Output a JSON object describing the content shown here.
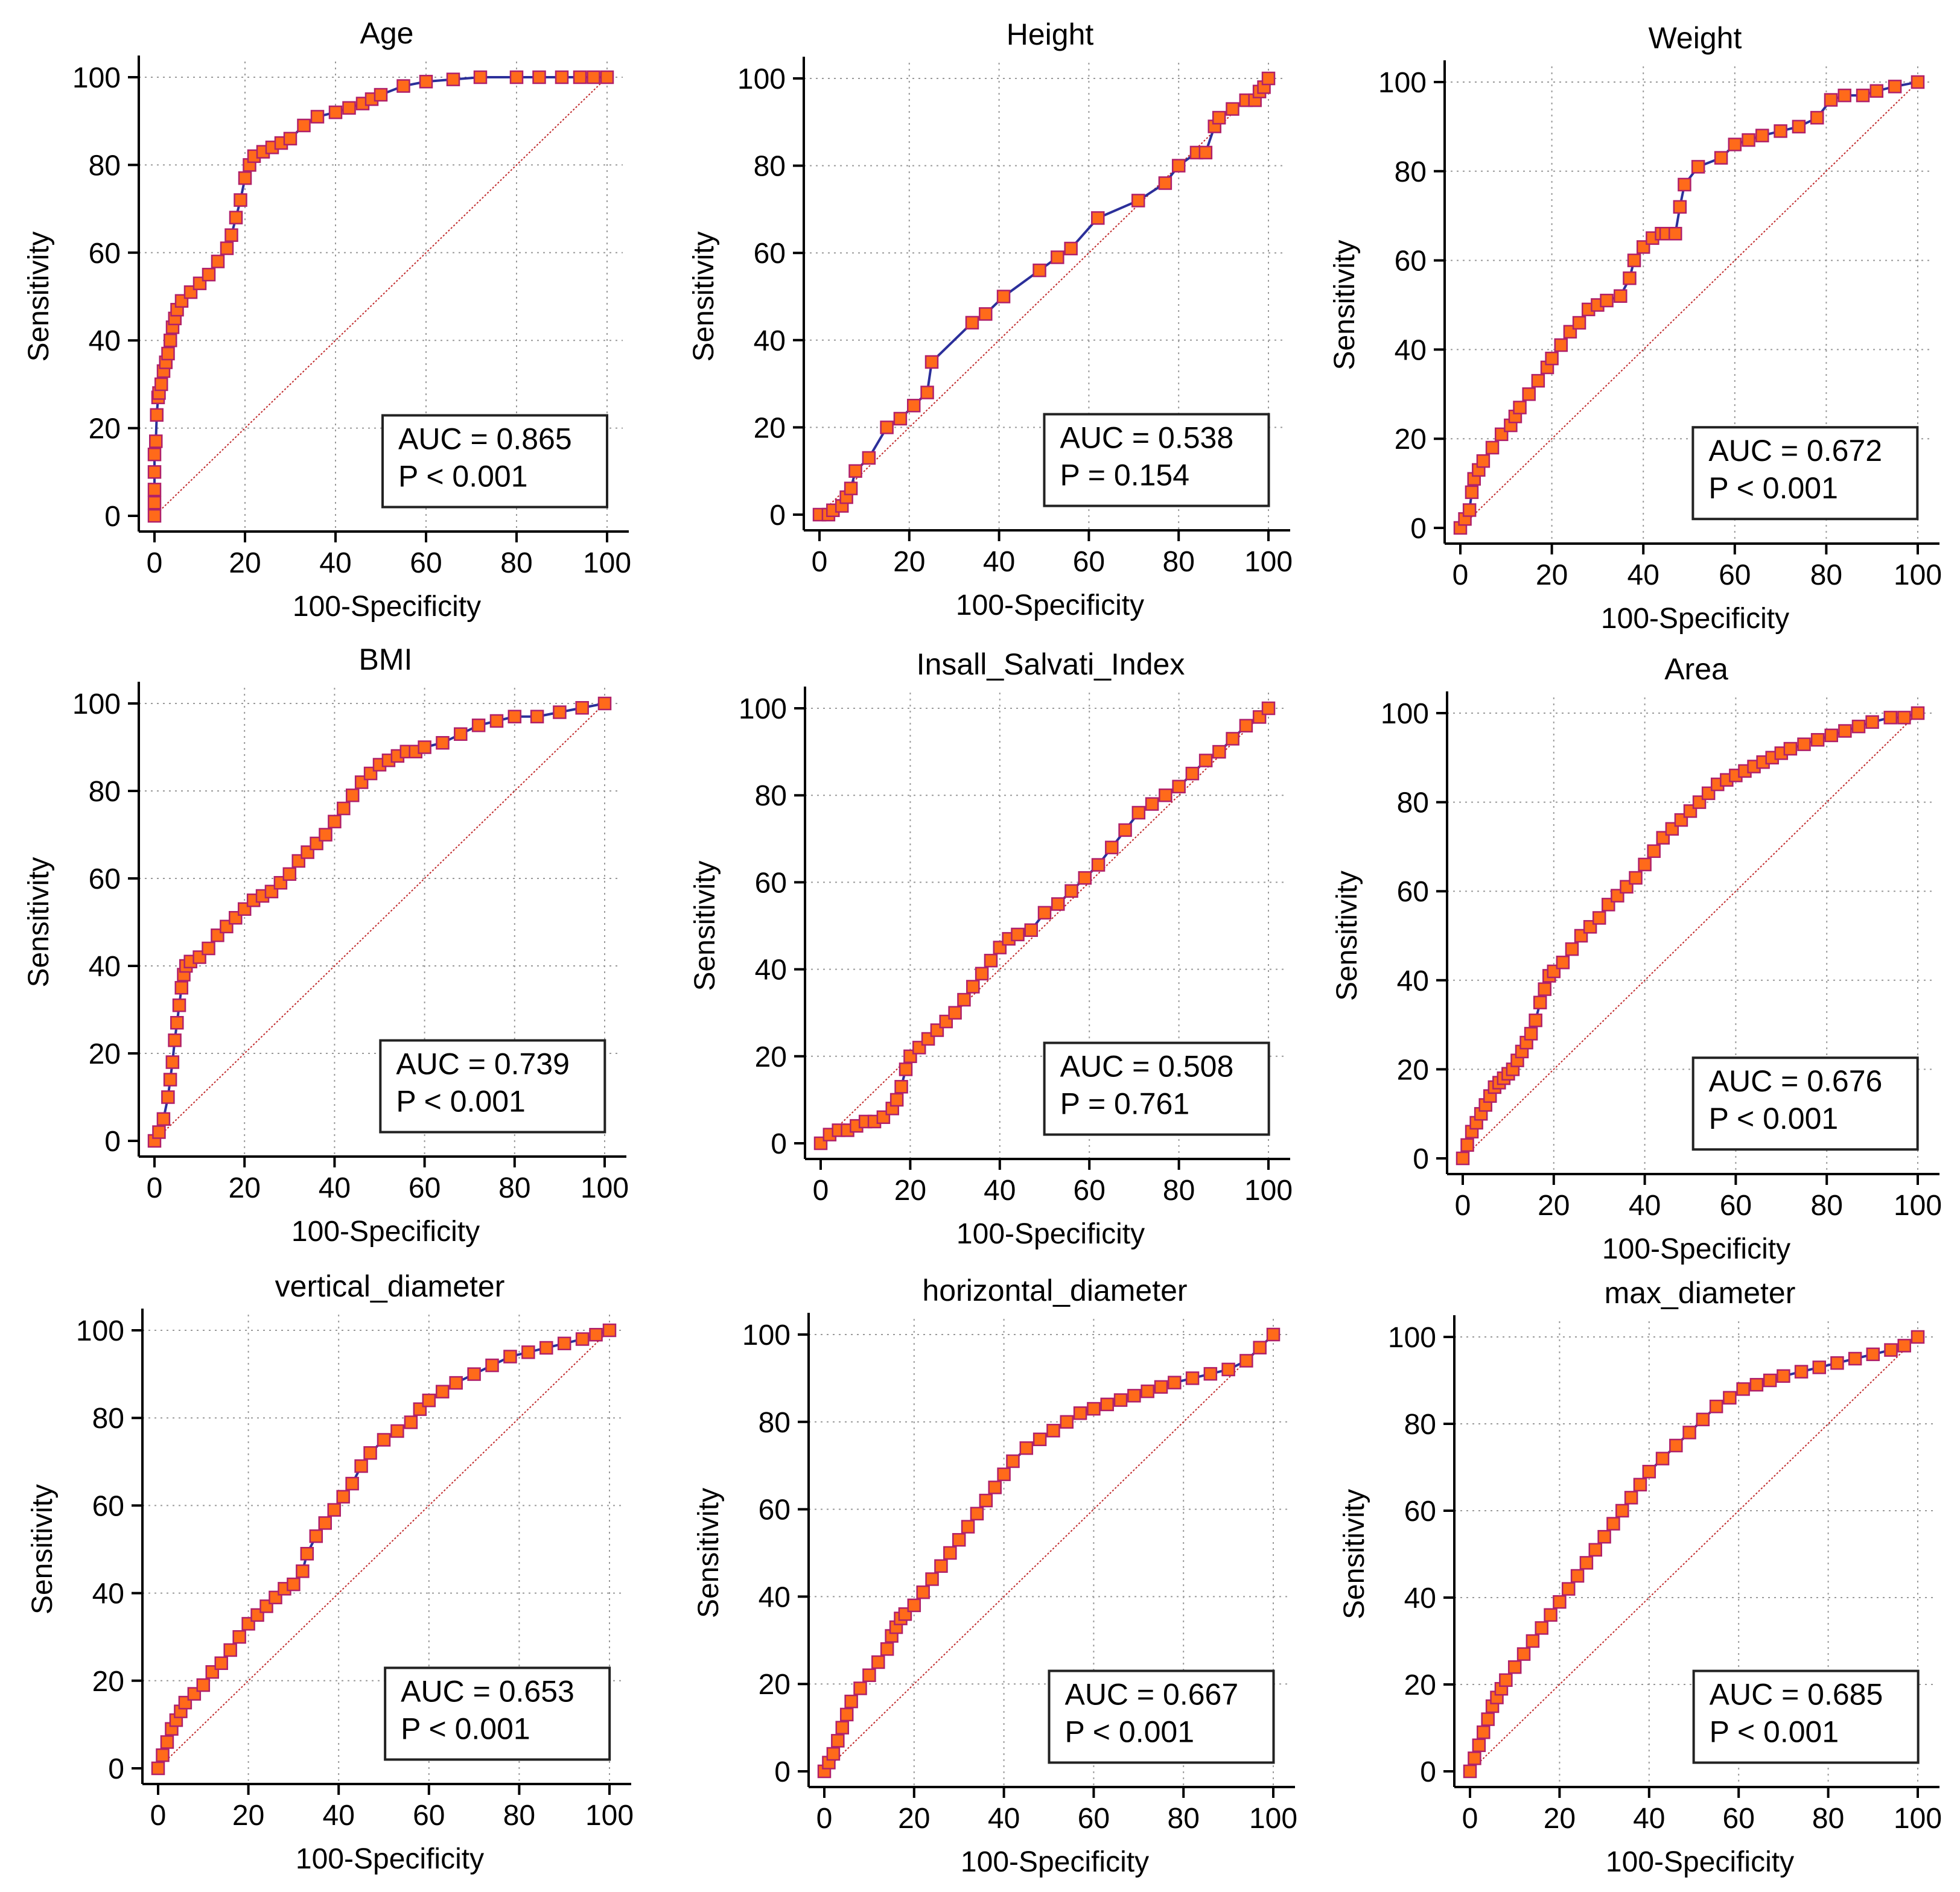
{
  "colors": {
    "curve": "#2b2f9a",
    "marker_fill": "#ff6a1a",
    "marker_stroke": "#b0206a",
    "diagonal": "#c0282a",
    "grid": "#9a9a9a",
    "axis": "#000000"
  },
  "chart_data": [
    {
      "type": "line",
      "title": "Age",
      "xlabel": "100-Specificity",
      "ylabel": "Sensitivity",
      "xlim": [
        0,
        100
      ],
      "ylim": [
        0,
        100
      ],
      "xticks": [
        "0",
        "20",
        "40",
        "60",
        "80",
        "100"
      ],
      "yticks": [
        "0",
        "20",
        "40",
        "60",
        "80",
        "100"
      ],
      "grid": true,
      "diagonal": true,
      "annotation": [
        "AUC = 0.865",
        "P < 0.001"
      ],
      "annotation_placement": "bottom-right",
      "x": [
        0,
        0,
        0,
        0,
        0,
        0.3,
        0.5,
        0.8,
        1,
        1.5,
        2,
        2.5,
        3,
        3.5,
        4,
        4.5,
        5,
        6,
        8,
        10,
        12,
        14,
        16,
        17,
        18,
        19,
        20,
        21,
        22,
        24,
        26,
        28,
        30,
        33,
        36,
        40,
        43,
        46,
        48,
        50,
        55,
        60,
        66,
        72,
        80,
        85,
        90,
        94,
        97,
        100
      ],
      "y": [
        0,
        3,
        6,
        10,
        14,
        17,
        23,
        27,
        28,
        30,
        33,
        35,
        37,
        40,
        43,
        45,
        47,
        49,
        51,
        53,
        55,
        58,
        61,
        64,
        68,
        72,
        77,
        80,
        82,
        83,
        84,
        85,
        86,
        89,
        91,
        92,
        93,
        94,
        95,
        96,
        98,
        99,
        99.5,
        100,
        100,
        100,
        100,
        100,
        100,
        100
      ]
    },
    {
      "type": "line",
      "title": "Height",
      "xlabel": "100-Specificity",
      "ylabel": "Sensitivity",
      "xlim": [
        0,
        100
      ],
      "ylim": [
        0,
        100
      ],
      "xticks": [
        "0",
        "20",
        "40",
        "60",
        "80",
        "100"
      ],
      "yticks": [
        "0",
        "20",
        "40",
        "60",
        "80",
        "100"
      ],
      "grid": true,
      "diagonal": true,
      "annotation": [
        "AUC = 0.538",
        "P = 0.154"
      ],
      "annotation_placement": "bottom-right",
      "x": [
        0,
        2,
        3,
        5,
        6,
        7,
        8,
        11,
        15,
        18,
        21,
        24,
        25,
        34,
        37,
        41,
        49,
        53,
        56,
        62,
        71,
        77,
        80,
        84,
        86,
        88,
        89,
        92,
        95,
        97,
        98,
        99,
        100
      ],
      "y": [
        0,
        0,
        1,
        2,
        4,
        6,
        10,
        13,
        20,
        22,
        25,
        28,
        35,
        44,
        46,
        50,
        56,
        59,
        61,
        68,
        72,
        76,
        80,
        83,
        83,
        89,
        91,
        93,
        95,
        95,
        97,
        98,
        100
      ]
    },
    {
      "type": "line",
      "title": "Weight",
      "xlabel": "100-Specificity",
      "ylabel": "Sensitivity",
      "xlim": [
        0,
        100
      ],
      "ylim": [
        0,
        100
      ],
      "xticks": [
        "0",
        "20",
        "40",
        "60",
        "80",
        "100"
      ],
      "yticks": [
        "0",
        "20",
        "40",
        "60",
        "80",
        "100"
      ],
      "grid": true,
      "diagonal": true,
      "annotation": [
        "AUC = 0.672",
        "P < 0.001"
      ],
      "annotation_placement": "bottom-right",
      "x": [
        0,
        1,
        2,
        2.5,
        3,
        4,
        5,
        7,
        9,
        11,
        12,
        13,
        15,
        17,
        19,
        20,
        22,
        24,
        26,
        28,
        30,
        32,
        35,
        37,
        38,
        40,
        42,
        44,
        45,
        47,
        48,
        49,
        52,
        57,
        60,
        63,
        66,
        70,
        74,
        78,
        81,
        84,
        88,
        91,
        95,
        100
      ],
      "y": [
        0,
        2,
        4,
        8,
        11,
        13,
        15,
        18,
        21,
        23,
        25,
        27,
        30,
        33,
        36,
        38,
        41,
        44,
        46,
        49,
        50,
        51,
        52,
        56,
        60,
        63,
        65,
        66,
        66,
        66,
        72,
        77,
        81,
        83,
        86,
        87,
        88,
        89,
        90,
        92,
        96,
        97,
        97,
        98,
        99,
        100
      ]
    },
    {
      "type": "line",
      "title": "BMI",
      "xlabel": "100-Specificity",
      "ylabel": "Sensitivity",
      "xlim": [
        0,
        100
      ],
      "ylim": [
        0,
        100
      ],
      "xticks": [
        "0",
        "20",
        "40",
        "60",
        "80",
        "100"
      ],
      "yticks": [
        "0",
        "20",
        "40",
        "60",
        "80",
        "100"
      ],
      "grid": true,
      "diagonal": true,
      "annotation": [
        "AUC = 0.739",
        "P < 0.001"
      ],
      "annotation_placement": "bottom-right",
      "x": [
        0,
        1,
        2,
        3,
        3.5,
        4,
        4.5,
        5,
        5.5,
        6,
        6.5,
        7,
        8,
        10,
        12,
        14,
        16,
        18,
        20,
        22,
        24,
        26,
        28,
        30,
        32,
        34,
        36,
        38,
        40,
        42,
        44,
        46,
        48,
        50,
        52,
        54,
        56,
        58,
        60,
        64,
        68,
        72,
        76,
        80,
        85,
        90,
        95,
        100
      ],
      "y": [
        0,
        2,
        5,
        10,
        14,
        18,
        23,
        27,
        31,
        35,
        38,
        40,
        41,
        42,
        44,
        47,
        49,
        51,
        53,
        55,
        56,
        57,
        59,
        61,
        64,
        66,
        68,
        70,
        73,
        76,
        79,
        82,
        84,
        86,
        87,
        88,
        89,
        89,
        90,
        91,
        93,
        95,
        96,
        97,
        97,
        98,
        99,
        100
      ]
    },
    {
      "type": "line",
      "title": "Insall_Salvati_Index",
      "xlabel": "100-Specificity",
      "ylabel": "Sensitivity",
      "xlim": [
        0,
        100
      ],
      "ylim": [
        0,
        100
      ],
      "xticks": [
        "0",
        "20",
        "40",
        "60",
        "80",
        "100"
      ],
      "yticks": [
        "0",
        "20",
        "40",
        "60",
        "80",
        "100"
      ],
      "grid": true,
      "diagonal": true,
      "annotation": [
        "AUC = 0.508",
        "P = 0.761"
      ],
      "annotation_placement": "bottom-right",
      "x": [
        0,
        2,
        4,
        6,
        8,
        10,
        12,
        14,
        16,
        17,
        18,
        19,
        20,
        22,
        24,
        26,
        28,
        30,
        32,
        34,
        36,
        38,
        40,
        42,
        44,
        47,
        50,
        53,
        56,
        59,
        62,
        65,
        68,
        71,
        74,
        77,
        80,
        83,
        86,
        89,
        92,
        95,
        98,
        100
      ],
      "y": [
        0,
        2,
        3,
        3,
        4,
        5,
        5,
        6,
        8,
        10,
        13,
        17,
        20,
        22,
        24,
        26,
        28,
        30,
        33,
        36,
        39,
        42,
        45,
        47,
        48,
        49,
        53,
        55,
        58,
        61,
        64,
        68,
        72,
        76,
        78,
        80,
        82,
        85,
        88,
        90,
        93,
        96,
        98,
        100
      ]
    },
    {
      "type": "line",
      "title": "Area",
      "xlabel": "100-Specificity",
      "ylabel": "Sensitivity",
      "xlim": [
        0,
        100
      ],
      "ylim": [
        0,
        100
      ],
      "xticks": [
        "0",
        "20",
        "40",
        "60",
        "80",
        "100"
      ],
      "yticks": [
        "0",
        "20",
        "40",
        "60",
        "80",
        "100"
      ],
      "grid": true,
      "diagonal": true,
      "annotation": [
        "AUC = 0.676",
        "P < 0.001"
      ],
      "annotation_placement": "bottom-right",
      "x": [
        0,
        1,
        2,
        3,
        4,
        5,
        6,
        7,
        8,
        9,
        10,
        11,
        12,
        13,
        14,
        15,
        16,
        17,
        18,
        19,
        20,
        22,
        24,
        26,
        28,
        30,
        32,
        34,
        36,
        38,
        40,
        42,
        44,
        46,
        48,
        50,
        52,
        54,
        56,
        58,
        60,
        62,
        64,
        66,
        68,
        70,
        72,
        75,
        78,
        81,
        84,
        87,
        90,
        94,
        97,
        100
      ],
      "y": [
        0,
        3,
        6,
        8,
        10,
        12,
        14,
        16,
        17,
        18,
        19,
        20,
        22,
        24,
        26,
        28,
        31,
        35,
        38,
        41,
        42,
        44,
        47,
        50,
        52,
        54,
        57,
        59,
        61,
        63,
        66,
        69,
        72,
        74,
        76,
        78,
        80,
        82,
        84,
        85,
        86,
        87,
        88,
        89,
        90,
        91,
        92,
        93,
        94,
        95,
        96,
        97,
        98,
        99,
        99,
        100
      ]
    },
    {
      "type": "line",
      "title": "vertical_diameter",
      "xlabel": "100-Specificity",
      "ylabel": "Sensitivity",
      "xlim": [
        0,
        100
      ],
      "ylim": [
        0,
        100
      ],
      "xticks": [
        "0",
        "20",
        "40",
        "60",
        "80",
        "100"
      ],
      "yticks": [
        "0",
        "20",
        "40",
        "60",
        "80",
        "100"
      ],
      "grid": true,
      "diagonal": true,
      "annotation": [
        "AUC = 0.653",
        "P < 0.001"
      ],
      "annotation_placement": "bottom-right",
      "x": [
        0,
        1,
        2,
        3,
        4,
        5,
        6,
        8,
        10,
        12,
        14,
        16,
        18,
        20,
        22,
        24,
        26,
        28,
        30,
        32,
        33,
        35,
        37,
        39,
        41,
        43,
        45,
        47,
        50,
        53,
        56,
        58,
        60,
        63,
        66,
        70,
        74,
        78,
        82,
        86,
        90,
        94,
        97,
        100
      ],
      "y": [
        0,
        3,
        6,
        9,
        11,
        13,
        15,
        17,
        19,
        22,
        24,
        27,
        30,
        33,
        35,
        37,
        39,
        41,
        42,
        45,
        49,
        53,
        56,
        59,
        62,
        65,
        69,
        72,
        75,
        77,
        79,
        82,
        84,
        86,
        88,
        90,
        92,
        94,
        95,
        96,
        97,
        98,
        99,
        100
      ]
    },
    {
      "type": "line",
      "title": "horizontal_diameter",
      "xlabel": "100-Specificity",
      "ylabel": "Sensitivity",
      "xlim": [
        0,
        100
      ],
      "ylim": [
        0,
        100
      ],
      "xticks": [
        "0",
        "20",
        "40",
        "60",
        "80",
        "100"
      ],
      "yticks": [
        "0",
        "20",
        "40",
        "60",
        "80",
        "100"
      ],
      "grid": true,
      "diagonal": true,
      "annotation": [
        "AUC = 0.667",
        "P < 0.001"
      ],
      "annotation_placement": "bottom-right",
      "x": [
        0,
        1,
        2,
        3,
        4,
        5,
        6,
        8,
        10,
        12,
        14,
        15,
        16,
        17,
        18,
        20,
        22,
        24,
        26,
        28,
        30,
        32,
        34,
        36,
        38,
        40,
        42,
        45,
        48,
        51,
        54,
        57,
        60,
        63,
        66,
        69,
        72,
        75,
        78,
        82,
        86,
        90,
        94,
        97,
        100
      ],
      "y": [
        0,
        2,
        4,
        7,
        10,
        13,
        16,
        19,
        22,
        25,
        28,
        31,
        33,
        35,
        36,
        38,
        41,
        44,
        47,
        50,
        53,
        56,
        59,
        62,
        65,
        68,
        71,
        74,
        76,
        78,
        80,
        82,
        83,
        84,
        85,
        86,
        87,
        88,
        89,
        90,
        91,
        92,
        94,
        97,
        100
      ]
    },
    {
      "type": "line",
      "title": "max_diameter",
      "xlabel": "100-Specificity",
      "ylabel": "Sensitivity",
      "xlim": [
        0,
        100
      ],
      "ylim": [
        0,
        100
      ],
      "xticks": [
        "0",
        "20",
        "40",
        "60",
        "80",
        "100"
      ],
      "yticks": [
        "0",
        "20",
        "40",
        "60",
        "80",
        "100"
      ],
      "grid": true,
      "diagonal": true,
      "annotation": [
        "AUC = 0.685",
        "P < 0.001"
      ],
      "annotation_placement": "bottom-right",
      "x": [
        0,
        1,
        2,
        3,
        4,
        5,
        6,
        7,
        8,
        10,
        12,
        14,
        16,
        18,
        20,
        22,
        24,
        26,
        28,
        30,
        32,
        34,
        36,
        38,
        40,
        43,
        46,
        49,
        52,
        55,
        58,
        61,
        64,
        67,
        70,
        74,
        78,
        82,
        86,
        90,
        94,
        97,
        100
      ],
      "y": [
        0,
        3,
        6,
        9,
        12,
        15,
        17,
        19,
        21,
        24,
        27,
        30,
        33,
        36,
        39,
        42,
        45,
        48,
        51,
        54,
        57,
        60,
        63,
        66,
        69,
        72,
        75,
        78,
        81,
        84,
        86,
        88,
        89,
        90,
        91,
        92,
        93,
        94,
        95,
        96,
        97,
        98,
        100
      ]
    }
  ]
}
